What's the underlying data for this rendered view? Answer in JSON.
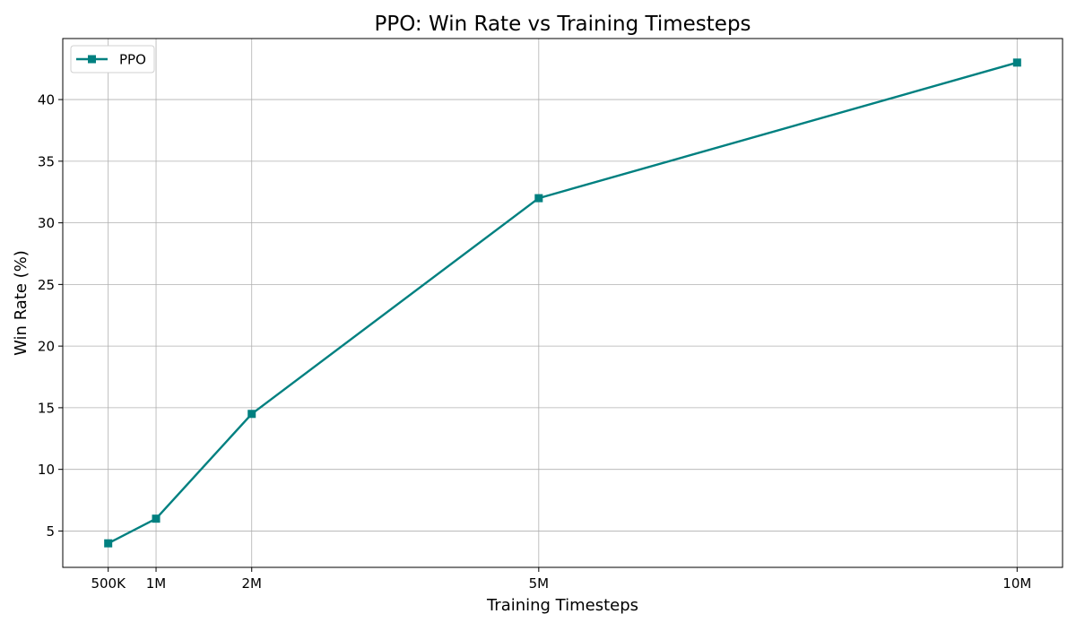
{
  "chart_data": {
    "type": "line",
    "title": "PPO: Win Rate vs Training Timesteps",
    "xlabel": "Training Timesteps",
    "ylabel": "Win Rate (%)",
    "x_tick_values": [
      500000,
      1000000,
      2000000,
      5000000,
      10000000
    ],
    "x_tick_labels": [
      "500K",
      "1M",
      "2M",
      "5M",
      "10M"
    ],
    "xlim": [
      25000,
      10475000
    ],
    "y_ticks": [
      5,
      10,
      15,
      20,
      25,
      30,
      35,
      40
    ],
    "ylim": [
      2.05,
      44.95
    ],
    "grid": true,
    "legend_position": "upper-left",
    "series": [
      {
        "name": "PPO",
        "color": "#008080",
        "marker": "square",
        "x": [
          500000,
          1000000,
          2000000,
          5000000,
          10000000
        ],
        "values": [
          4,
          6,
          14.5,
          32,
          43
        ]
      }
    ]
  }
}
